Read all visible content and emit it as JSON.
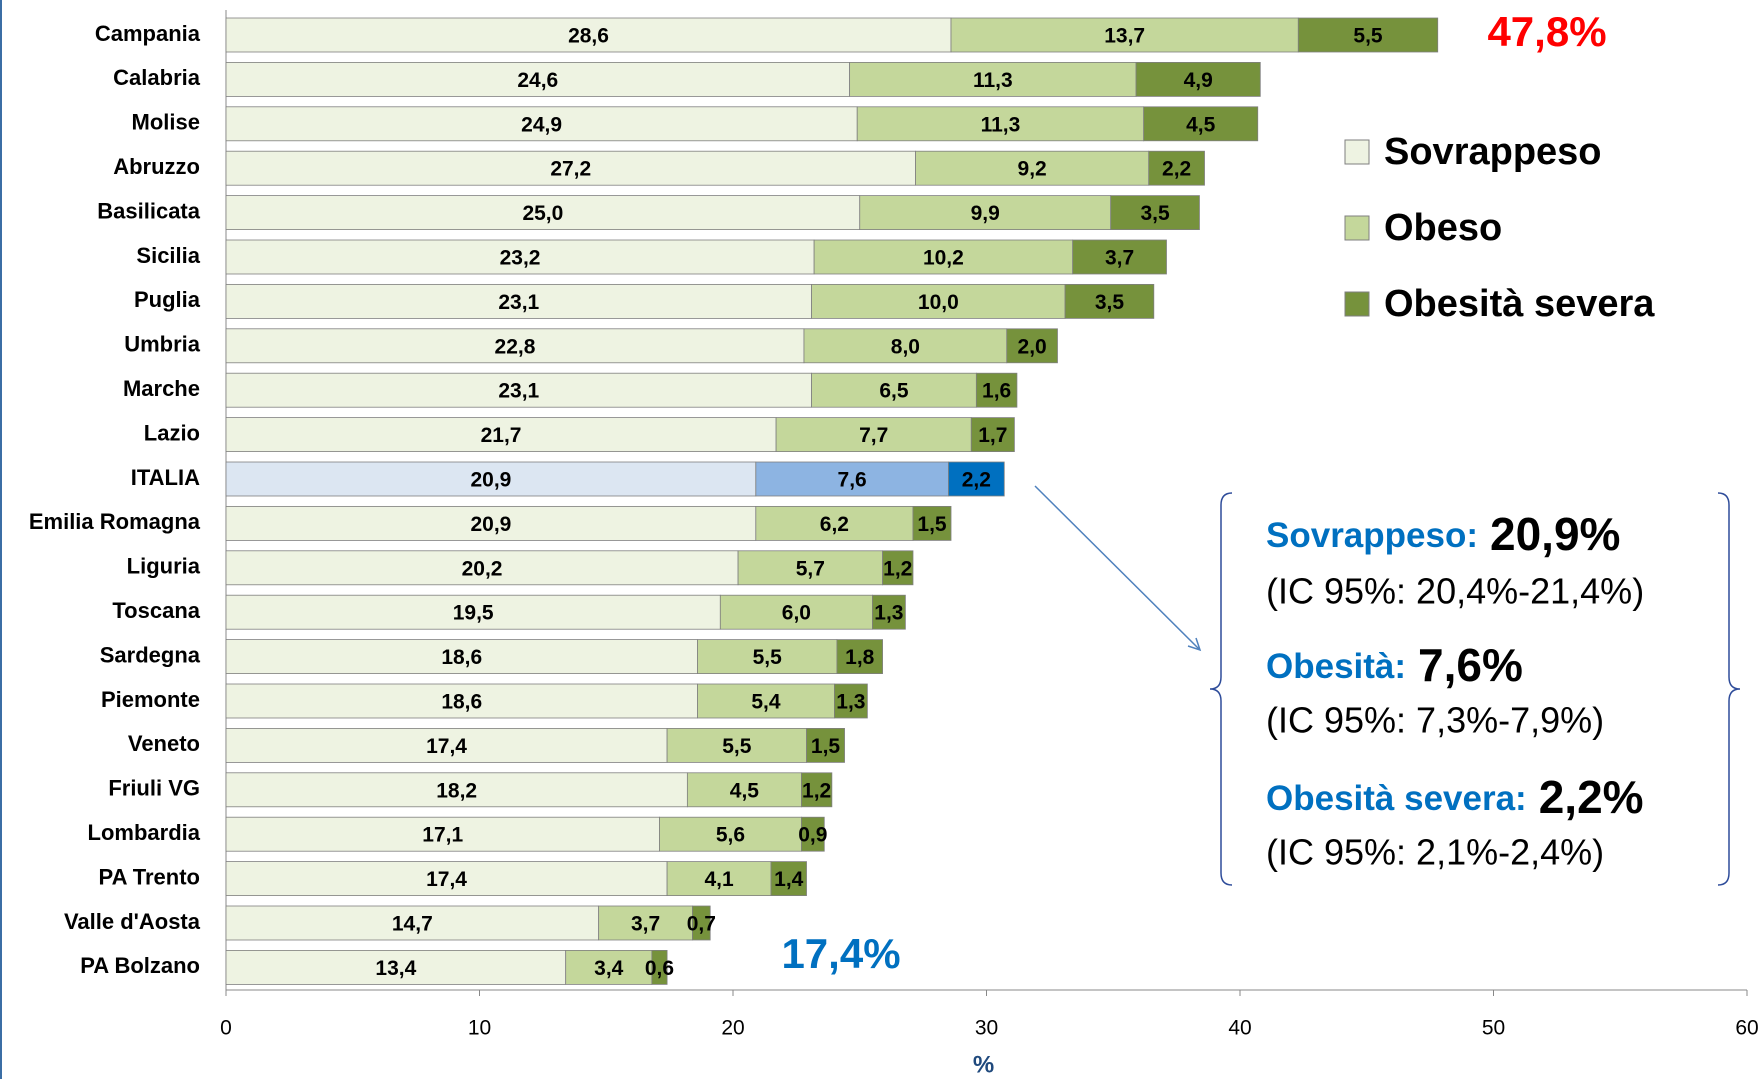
{
  "chart_data": {
    "type": "stacked_barh",
    "categories": [
      "Campania",
      "Calabria",
      "Molise",
      "Abruzzo",
      "Basilicata",
      "Sicilia",
      "Puglia",
      "Umbria",
      "Marche",
      "Lazio",
      "ITALIA",
      "Emilia Romagna",
      "Liguria",
      "Toscana",
      "Sardegna",
      "Piemonte",
      "Veneto",
      "Friuli VG",
      "Lombardia",
      "PA Trento",
      "Valle d'Aosta",
      "PA Bolzano"
    ],
    "series": [
      {
        "name": "Sovrappeso",
        "color": "#eef3e2",
        "values": [
          28.6,
          24.6,
          24.9,
          27.2,
          25.0,
          23.2,
          23.1,
          22.8,
          23.1,
          21.7,
          20.9,
          20.9,
          20.2,
          19.5,
          18.6,
          18.6,
          17.4,
          18.2,
          17.1,
          17.4,
          14.7,
          13.4
        ],
        "value_labels": [
          "28,6",
          "24,6",
          "24,9",
          "27,2",
          "25,0",
          "23,2",
          "23,1",
          "22,8",
          "23,1",
          "21,7",
          "20,9",
          "20,9",
          "20,2",
          "19,5",
          "18,6",
          "18,6",
          "17,4",
          "18,2",
          "17,1",
          "17,4",
          "14,7",
          "13,4"
        ]
      },
      {
        "name": "Obeso",
        "color": "#c4d79b",
        "values": [
          13.7,
          11.3,
          11.3,
          9.2,
          9.9,
          10.2,
          10.0,
          8.0,
          6.5,
          7.7,
          7.6,
          6.2,
          5.7,
          6.0,
          5.5,
          5.4,
          5.5,
          4.5,
          5.6,
          4.1,
          3.7,
          3.4
        ],
        "value_labels": [
          "13,7",
          "11,3",
          "11,3",
          "9,2",
          "9,9",
          "10,2",
          "10,0",
          "8,0",
          "6,5",
          "7,7",
          "7,6",
          "6,2",
          "5,7",
          "6,0",
          "5,5",
          "5,4",
          "5,5",
          "4,5",
          "5,6",
          "4,1",
          "3,7",
          "3,4"
        ]
      },
      {
        "name": "Obesità severa",
        "color": "#76923c",
        "values": [
          5.5,
          4.9,
          4.5,
          2.2,
          3.5,
          3.7,
          3.5,
          2.0,
          1.6,
          1.7,
          2.2,
          1.5,
          1.2,
          1.3,
          1.8,
          1.3,
          1.5,
          1.2,
          0.9,
          1.4,
          0.7,
          0.6
        ],
        "value_labels": [
          "5,5",
          "4,9",
          "4,5",
          "2,2",
          "3,5",
          "3,7",
          "3,5",
          "2,0",
          "1,6",
          "1,7",
          "2,2",
          "1,5",
          "1,2",
          "1,3",
          "1,8",
          "1,3",
          "1,5",
          "1,2",
          "0,9",
          "1,4",
          "0,7",
          "0,6"
        ]
      }
    ],
    "highlight": {
      "category": "ITALIA",
      "colors": [
        "#dce6f2",
        "#8db4e2",
        "#0070c0"
      ]
    },
    "xlim": [
      0,
      60
    ],
    "xticks": [
      0,
      10,
      20,
      30,
      40,
      50,
      60
    ],
    "xlabel": "%",
    "legend": "right",
    "annotations": [
      {
        "text": "47,8%",
        "color": "#ff0000"
      },
      {
        "text": "17,4%",
        "color": "#0070c0"
      }
    ],
    "box": [
      {
        "label": "Sovrappeso:",
        "value": "20,9%",
        "ci": "(IC 95%: 20,4%-21,4%)"
      },
      {
        "label": "Obesità:",
        "value": "7,6%",
        "ci": "(IC 95%: 7,3%-7,9%)"
      },
      {
        "label": "Obesità severa:",
        "value": "2,2%",
        "ci": "(IC 95%: 2,1%-2,4%)"
      }
    ]
  }
}
